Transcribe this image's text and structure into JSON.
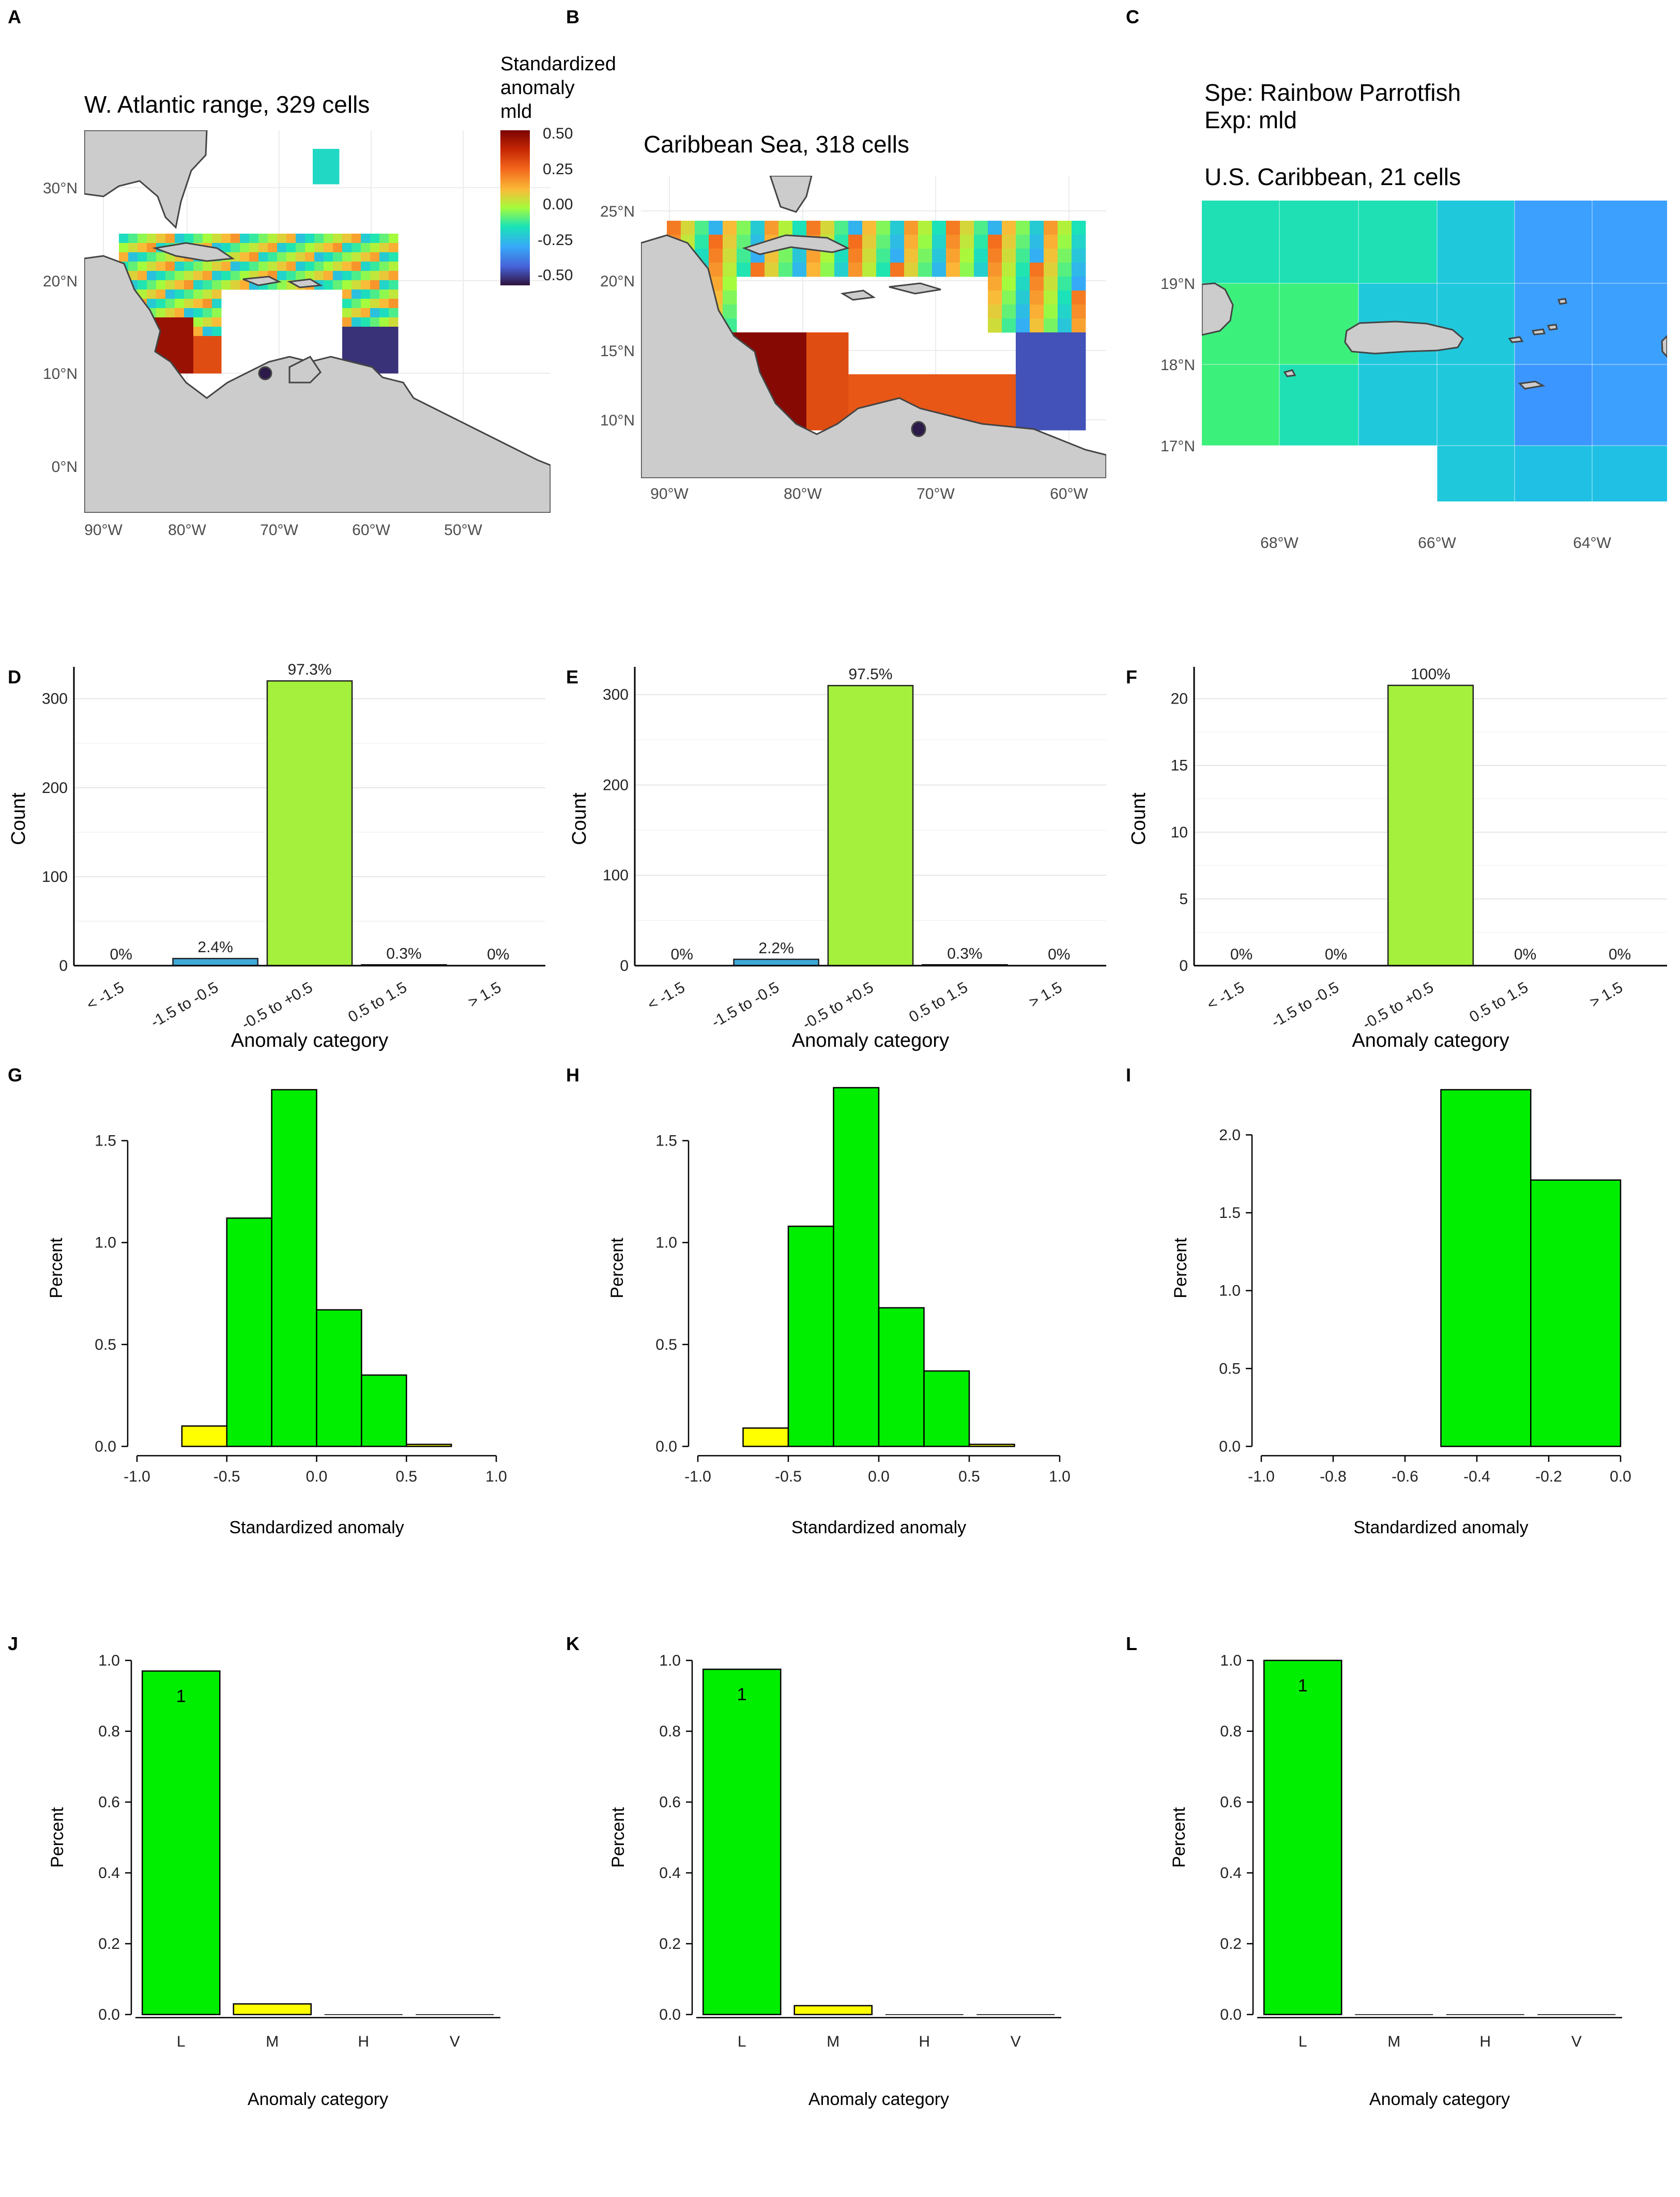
{
  "panel_labels": [
    "A",
    "B",
    "C",
    "D",
    "E",
    "F",
    "G",
    "H",
    "I",
    "J",
    "K",
    "L"
  ],
  "maps": {
    "A": {
      "title": "W. Atlantic range, 329 cells",
      "lat_labels": [
        "30°N",
        "20°N",
        "10°N",
        "0°N"
      ],
      "lon_labels": [
        "90°W",
        "80°W",
        "70°W",
        "60°W",
        "50°W"
      ]
    },
    "B": {
      "title": "Caribbean Sea, 318 cells",
      "lat_labels": [
        "25°N",
        "20°N",
        "15°N",
        "10°N"
      ],
      "lon_labels": [
        "90°W",
        "80°W",
        "70°W",
        "60°W"
      ]
    },
    "C": {
      "title": "U.S. Caribbean, 21 cells",
      "species": "Spe: Rainbow Parrotfish",
      "experiment": "Exp: mld",
      "lat_labels": [
        "19°N",
        "18°N",
        "17°N"
      ],
      "lon_labels": [
        "68°W",
        "66°W",
        "64°W"
      ]
    },
    "legend": {
      "title_lines": [
        "Standardized",
        "anomaly",
        "mld"
      ],
      "labels": [
        "0.50",
        "0.25",
        "0.00",
        "-0.25",
        "-0.50"
      ]
    }
  },
  "colors": {
    "bar_green": "#a4f03c",
    "bar_blue": "#3fa9d8",
    "hist_green": "#00ee00",
    "hist_yellow": "#ffff00",
    "land": "#cccccc",
    "ocean_blue": "#3ca0ff",
    "ocean_teal": "#1ee0b4",
    "ocean_cyan": "#20c8dc",
    "ocean_green": "#3cf07c"
  },
  "chart_data": [
    {
      "panel": "D",
      "type": "bar",
      "categories": [
        "< -1.5",
        "-1.5 to -0.5",
        "-0.5 to +0.5",
        "0.5 to 1.5",
        "> 1.5"
      ],
      "values": [
        0,
        8,
        320,
        1,
        0
      ],
      "labels": [
        "0%",
        "2.4%",
        "97.3%",
        "0.3%",
        "0%"
      ],
      "xlabel": "Anomaly category",
      "ylabel": "Count",
      "ylim": [
        0,
        330
      ],
      "yticks": [
        0,
        100,
        200,
        300
      ]
    },
    {
      "panel": "E",
      "type": "bar",
      "categories": [
        "< -1.5",
        "-1.5 to -0.5",
        "-0.5 to +0.5",
        "0.5 to 1.5",
        "> 1.5"
      ],
      "values": [
        0,
        7,
        310,
        1,
        0
      ],
      "labels": [
        "0%",
        "2.2%",
        "97.5%",
        "0.3%",
        "0%"
      ],
      "xlabel": "Anomaly category",
      "ylabel": "Count",
      "ylim": [
        0,
        325
      ],
      "yticks": [
        0,
        100,
        200,
        300
      ]
    },
    {
      "panel": "F",
      "type": "bar",
      "categories": [
        "< -1.5",
        "-1.5 to -0.5",
        "-0.5 to +0.5",
        "0.5 to 1.5",
        "> 1.5"
      ],
      "values": [
        0,
        0,
        21,
        0,
        0
      ],
      "labels": [
        "0%",
        "0%",
        "100%",
        "0%",
        "0%"
      ],
      "xlabel": "Anomaly category",
      "ylabel": "Count",
      "ylim": [
        0,
        22
      ],
      "yticks": [
        0,
        5,
        10,
        15,
        20
      ]
    },
    {
      "panel": "G",
      "type": "bar",
      "xlabel": "Standardized anomaly",
      "ylabel": "Percent",
      "xlim": [
        -1,
        1
      ],
      "ylim": [
        0,
        1.75
      ],
      "xticks": [
        "-1.0",
        "-0.5",
        "0.0",
        "0.5",
        "1.0"
      ],
      "yticks": [
        "0.0",
        "0.5",
        "1.0",
        "1.5"
      ],
      "bins": [
        {
          "x0": -0.75,
          "x1": -0.5,
          "value": 0.1,
          "color": "yellow"
        },
        {
          "x0": -0.5,
          "x1": -0.25,
          "value": 1.12,
          "color": "green"
        },
        {
          "x0": -0.25,
          "x1": 0.0,
          "value": 1.75,
          "color": "green"
        },
        {
          "x0": 0.0,
          "x1": 0.25,
          "value": 0.67,
          "color": "green"
        },
        {
          "x0": 0.25,
          "x1": 0.5,
          "value": 0.35,
          "color": "green"
        },
        {
          "x0": 0.5,
          "x1": 0.75,
          "value": 0.01,
          "color": "yellow"
        }
      ]
    },
    {
      "panel": "H",
      "type": "bar",
      "xlabel": "Standardized anomaly",
      "ylabel": "Percent",
      "xlim": [
        -1,
        1
      ],
      "ylim": [
        0,
        1.75
      ],
      "xticks": [
        "-1.0",
        "-0.5",
        "0.0",
        "0.5",
        "1.0"
      ],
      "yticks": [
        "0.0",
        "0.5",
        "1.0",
        "1.5"
      ],
      "bins": [
        {
          "x0": -0.75,
          "x1": -0.5,
          "value": 0.09,
          "color": "yellow"
        },
        {
          "x0": -0.5,
          "x1": -0.25,
          "value": 1.08,
          "color": "green"
        },
        {
          "x0": -0.25,
          "x1": 0.0,
          "value": 1.76,
          "color": "green"
        },
        {
          "x0": 0.0,
          "x1": 0.25,
          "value": 0.68,
          "color": "green"
        },
        {
          "x0": 0.25,
          "x1": 0.5,
          "value": 0.37,
          "color": "green"
        },
        {
          "x0": 0.5,
          "x1": 0.75,
          "value": 0.01,
          "color": "yellow"
        }
      ]
    },
    {
      "panel": "I",
      "type": "bar",
      "xlabel": "Standardized anomaly",
      "ylabel": "Percent",
      "xlim": [
        -1,
        0
      ],
      "ylim": [
        0,
        2.29
      ],
      "xticks": [
        "-1.0",
        "-0.8",
        "-0.6",
        "-0.4",
        "-0.2",
        "0.0"
      ],
      "yticks": [
        "0.0",
        "0.5",
        "1.0",
        "1.5",
        "2.0"
      ],
      "bins": [
        {
          "x0": -0.5,
          "x1": -0.25,
          "value": 2.29,
          "color": "green"
        },
        {
          "x0": -0.25,
          "x1": 0.0,
          "value": 1.71,
          "color": "green"
        }
      ]
    },
    {
      "panel": "J",
      "type": "bar",
      "categories": [
        "L",
        "M",
        "H",
        "V"
      ],
      "values": [
        0.97,
        0.03,
        0,
        0
      ],
      "colors": [
        "green",
        "yellow",
        "green",
        "green"
      ],
      "bar_label": "1",
      "xlabel": "Anomaly category",
      "ylabel": "Percent",
      "ylim": [
        0,
        1
      ],
      "yticks": [
        "0.0",
        "0.2",
        "0.4",
        "0.6",
        "0.8",
        "1.0"
      ]
    },
    {
      "panel": "K",
      "type": "bar",
      "categories": [
        "L",
        "M",
        "H",
        "V"
      ],
      "values": [
        0.975,
        0.025,
        0,
        0
      ],
      "colors": [
        "green",
        "yellow",
        "green",
        "green"
      ],
      "bar_label": "1",
      "xlabel": "Anomaly category",
      "ylabel": "Percent",
      "ylim": [
        0,
        1
      ],
      "yticks": [
        "0.0",
        "0.2",
        "0.4",
        "0.6",
        "0.8",
        "1.0"
      ]
    },
    {
      "panel": "L",
      "type": "bar",
      "categories": [
        "L",
        "M",
        "H",
        "V"
      ],
      "values": [
        1.0,
        0,
        0,
        0
      ],
      "colors": [
        "green",
        "yellow",
        "green",
        "green"
      ],
      "bar_label": "1",
      "xlabel": "Anomaly category",
      "ylabel": "Percent",
      "ylim": [
        0,
        1
      ],
      "yticks": [
        "0.0",
        "0.2",
        "0.4",
        "0.6",
        "0.8",
        "1.0"
      ]
    }
  ]
}
